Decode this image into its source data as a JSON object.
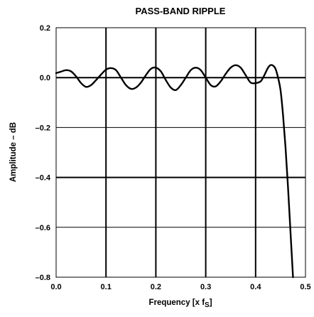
{
  "chart_data": {
    "type": "line",
    "title": "PASS-BAND RIPPLE",
    "xlabel": "Frequency [x f",
    "xlabel_subscript": "S",
    "xlabel_suffix": "]",
    "ylabel": "Amplitude – dB",
    "xlim": [
      0.0,
      0.5
    ],
    "ylim": [
      -0.8,
      0.2
    ],
    "x_ticks": [
      0.0,
      0.1,
      0.2,
      0.3,
      0.4,
      0.5
    ],
    "x_tick_labels": [
      "0.0",
      "0.1",
      "0.2",
      "0.3",
      "0.4",
      "0.5"
    ],
    "y_ticks": [
      0.2,
      0.0,
      -0.2,
      -0.4,
      -0.6,
      -0.8
    ],
    "y_tick_labels": [
      "0.2",
      "0.0",
      "–0.2",
      "–0.4",
      "–0.6",
      "–0.8"
    ],
    "grid": true,
    "series": [
      {
        "x": [
          0.0,
          0.01,
          0.02,
          0.03,
          0.04,
          0.05,
          0.06,
          0.07,
          0.08,
          0.09,
          0.1,
          0.11,
          0.12,
          0.13,
          0.14,
          0.15,
          0.16,
          0.17,
          0.18,
          0.19,
          0.2,
          0.21,
          0.22,
          0.23,
          0.24,
          0.25,
          0.26,
          0.27,
          0.28,
          0.29,
          0.3,
          0.31,
          0.32,
          0.33,
          0.34,
          0.35,
          0.36,
          0.37,
          0.38,
          0.39,
          0.4,
          0.41,
          0.415,
          0.42,
          0.425,
          0.43,
          0.435,
          0.44,
          0.445,
          0.45,
          0.455,
          0.46,
          0.465,
          0.47,
          0.475
        ],
        "y": [
          0.018,
          0.024,
          0.03,
          0.025,
          0.005,
          -0.022,
          -0.037,
          -0.03,
          -0.01,
          0.012,
          0.032,
          0.038,
          0.03,
          0.0,
          -0.03,
          -0.045,
          -0.04,
          -0.02,
          0.01,
          0.035,
          0.04,
          0.025,
          -0.01,
          -0.04,
          -0.05,
          -0.03,
          0.0,
          0.03,
          0.04,
          0.03,
          0.0,
          -0.03,
          -0.035,
          -0.015,
          0.015,
          0.04,
          0.05,
          0.04,
          0.01,
          -0.02,
          -0.022,
          -0.015,
          0.0,
          0.02,
          0.04,
          0.05,
          0.048,
          0.035,
          0.0,
          -0.05,
          -0.15,
          -0.28,
          -0.44,
          -0.62,
          -0.8
        ]
      }
    ]
  }
}
